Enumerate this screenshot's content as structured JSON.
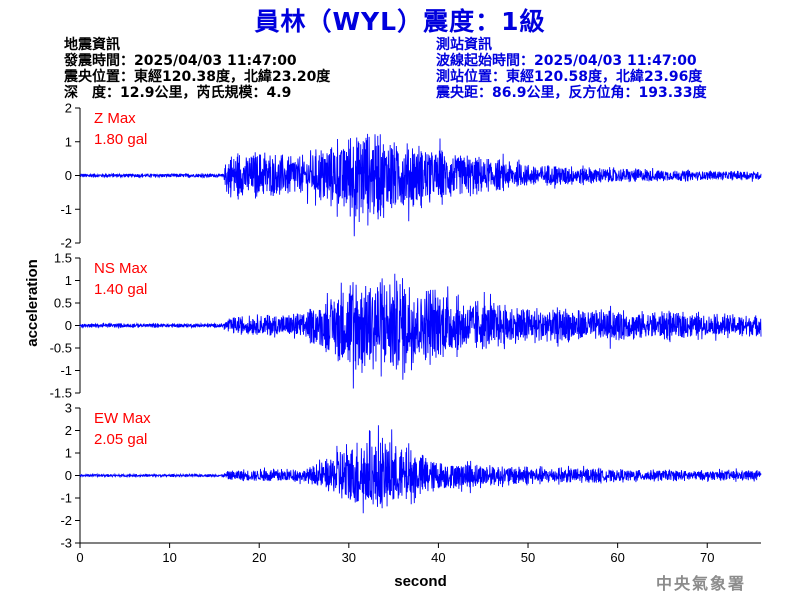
{
  "title": "員林（WYL）震度：1級",
  "event_info": {
    "heading": "地震資訊",
    "origin_time": "發震時間：2025/04/03 11:47:00",
    "epicenter": "震央位置：東經120.38度，北緯23.20度",
    "depth_magnitude": "深　度：12.9公里，芮氏規模：4.9"
  },
  "station_info": {
    "heading": "測站資訊",
    "wave_start": "波線起始時間：2025/04/03 11:47:00",
    "location": "測站位置：東經120.58度，北緯23.96度",
    "distance": "震央距：86.9公里，反方位角：193.33度"
  },
  "watermark": "中央氣象署",
  "chart_data": {
    "type": "line",
    "xlabel": "second",
    "ylabel": "acceleration",
    "xlim": [
      0,
      76
    ],
    "x_ticks": [
      0,
      10,
      20,
      30,
      40,
      50,
      60,
      70
    ],
    "line_color": "#0000ff",
    "label_color": "#ff0000",
    "panels": [
      {
        "name": "Z",
        "max_label": "Z Max",
        "max_value": "1.80 gal",
        "ylim": [
          -2,
          2
        ],
        "y_ticks": [
          -2,
          -1,
          0,
          1,
          2
        ],
        "envelope_seconds": [
          0,
          16,
          16.5,
          20,
          25,
          28,
          30,
          32,
          34,
          36,
          40,
          45,
          50,
          60,
          70,
          76
        ],
        "envelope_amplitude": [
          0.05,
          0.05,
          0.55,
          0.6,
          0.5,
          0.8,
          1.1,
          1.2,
          1.0,
          0.9,
          0.7,
          0.45,
          0.3,
          0.2,
          0.12,
          0.12
        ],
        "peak": {
          "t": 30.6,
          "v": -1.8
        }
      },
      {
        "name": "NS",
        "max_label": "NS Max",
        "max_value": "1.40 gal",
        "ylim": [
          -1.5,
          1.5
        ],
        "y_ticks": [
          -1.5,
          -1,
          -0.5,
          0,
          0.5,
          1,
          1.5
        ],
        "envelope_seconds": [
          0,
          16,
          16.5,
          20,
          25,
          28,
          30,
          33,
          36,
          38,
          42,
          46,
          50,
          60,
          70,
          76
        ],
        "envelope_amplitude": [
          0.04,
          0.04,
          0.15,
          0.2,
          0.25,
          0.55,
          0.9,
          1.0,
          1.0,
          0.8,
          0.55,
          0.45,
          0.35,
          0.3,
          0.22,
          0.22
        ],
        "peak": {
          "t": 30.5,
          "v": -1.4
        }
      },
      {
        "name": "EW",
        "max_label": "EW Max",
        "max_value": "2.05 gal",
        "ylim": [
          -3,
          3
        ],
        "y_ticks": [
          -3,
          -2,
          -1,
          0,
          1,
          2,
          3
        ],
        "envelope_seconds": [
          0,
          16,
          16.5,
          20,
          25,
          28,
          29,
          31,
          34,
          36,
          40,
          45,
          50,
          60,
          70,
          76
        ],
        "envelope_amplitude": [
          0.05,
          0.05,
          0.2,
          0.25,
          0.25,
          0.7,
          1.3,
          1.3,
          1.4,
          1.1,
          0.6,
          0.45,
          0.35,
          0.25,
          0.2,
          0.2
        ],
        "peak": {
          "t": 34.8,
          "v": 2.05
        }
      }
    ]
  }
}
